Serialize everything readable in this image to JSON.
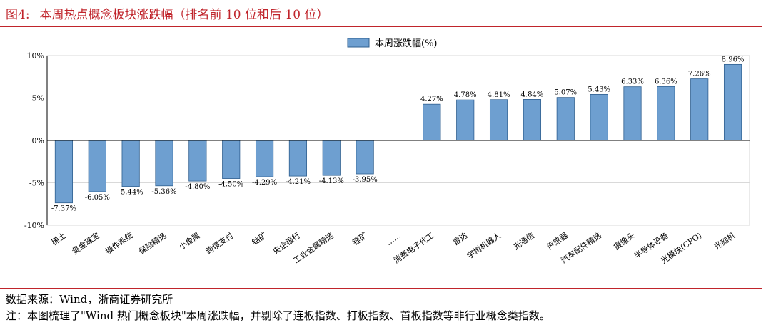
{
  "header": {
    "fig_label": "图4:",
    "title": "本周热点概念板块涨跌幅（排名前 10 位和后 10 位）"
  },
  "footer": {
    "source": "数据来源：Wind，浙商证券研究所",
    "note": "注：本图梳理了\"Wind 热门概念板块\"本周涨跌幅，并剔除了连板指数、打板指数、首板指数等非行业概念类指数。"
  },
  "chart_data": {
    "type": "bar",
    "categories": [
      "稀土",
      "黄金珠宝",
      "操作系统",
      "保险精选",
      "小金属",
      "跨境支付",
      "钴矿",
      "央企银行",
      "工业金属精选",
      "锂矿",
      "……",
      "消费电子代工",
      "雷达",
      "宇树机器人",
      "光通信",
      "传感器",
      "汽车配件精选",
      "摄像头",
      "半导体设备",
      "光模块(CPO)",
      "光刻机"
    ],
    "series": [
      {
        "name": "本周涨跌幅(%)",
        "values": [
          -7.37,
          -6.05,
          -5.44,
          -5.36,
          -4.8,
          -4.5,
          -4.29,
          -4.21,
          -4.13,
          -3.95,
          null,
          4.27,
          4.78,
          4.81,
          4.84,
          5.07,
          5.43,
          6.33,
          6.36,
          7.26,
          8.96
        ],
        "labels": [
          "-7.37%",
          "-6.05%",
          "-5.44%",
          "-5.36%",
          "-4.80%",
          "-4.50%",
          "-4.29%",
          "-4.21%",
          "-4.13%",
          "-3.95%",
          "",
          "4.27%",
          "4.78%",
          "4.81%",
          "4.84%",
          "5.07%",
          "5.43%",
          "6.33%",
          "6.36%",
          "7.26%",
          "8.96%"
        ]
      }
    ],
    "ylim": [
      -10,
      10
    ],
    "yticks": [
      -10,
      -5,
      0,
      5,
      10
    ],
    "ytick_labels": [
      "-10%",
      "-5%",
      "0%",
      "5%",
      "10%"
    ],
    "legend_position": "top-center",
    "grid": true,
    "bar_color": "#6e9fd0",
    "bar_edge_color": "#2f5f8f"
  }
}
